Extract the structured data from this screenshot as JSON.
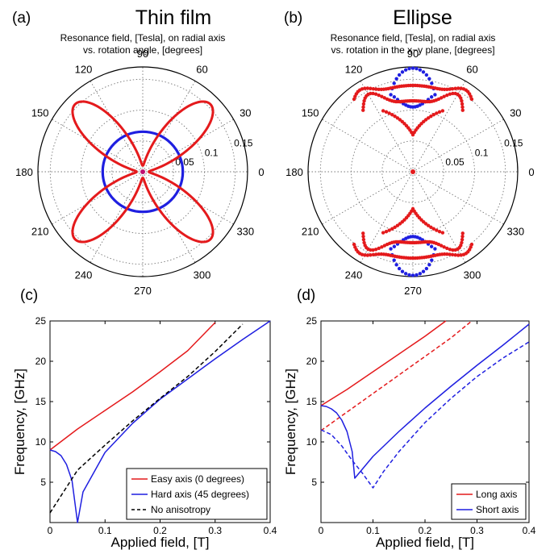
{
  "chart_data": [
    {
      "id": "a",
      "type": "polar",
      "panel_label": "(a)",
      "title": "Thin film",
      "subtitle_lines": [
        "Resonance field, [Tesla], on radial axis",
        "vs. rotation angle, [degrees]"
      ],
      "angle_labels": [
        "0",
        "30",
        "60",
        "90",
        "120",
        "150",
        "180",
        "210",
        "240",
        "270",
        "300",
        "330"
      ],
      "radial_labels": [
        "0.05",
        "0.1",
        "0.15"
      ],
      "rmax": 0.17,
      "colors": {
        "red": "#e41a1c",
        "blue": "#1f1fe0"
      },
      "series": [
        {
          "color": "red",
          "shape": "rose",
          "value_at_0_deg": 0.01,
          "value_at_45_deg": 0.155
        },
        {
          "color": "blue",
          "shape": "circle",
          "value": 0.065
        }
      ]
    },
    {
      "id": "b",
      "type": "polar",
      "panel_label": "(b)",
      "title": "Ellipse",
      "subtitle_lines": [
        "Resonance field, [Tesla], on radial axis",
        "vs. rotation in the x−y plane, [degrees]"
      ],
      "angle_labels": [
        "0",
        "30",
        "60",
        "90",
        "120",
        "150",
        "180",
        "210",
        "240",
        "270",
        "300",
        "330"
      ],
      "radial_labels": [
        "0.05",
        "0.1",
        "0.15"
      ],
      "rmax": 0.17,
      "colors": {
        "red": "#e41a1c",
        "blue": "#1f1fe0"
      },
      "series": [
        {
          "color": "red",
          "shape": "dotted-lobes",
          "value_at_90_deg": 0.115,
          "peak_value": 0.145,
          "peak_angle_offset_deg": 30
        },
        {
          "color": "red",
          "shape": "dotted-lobes",
          "value_at_90_deg": 0.14,
          "max_value": 0.158
        },
        {
          "color": "blue",
          "shape": "dotted-lobes",
          "value_at_90_deg": 0.168,
          "inner_value_at_90_deg": 0.105
        }
      ]
    },
    {
      "id": "c",
      "type": "line",
      "panel_label": "(c)",
      "xlabel": "Applied field, [T]",
      "ylabel": "Frequency, [GHz]",
      "xlim": [
        0,
        0.4
      ],
      "ylim": [
        0,
        25
      ],
      "xticks": [
        "0",
        "0.1",
        "0.2",
        "0.3",
        "0.4"
      ],
      "yticks": [
        "5",
        "10",
        "15",
        "20",
        "25"
      ],
      "series": [
        {
          "name": "Easy axis (0 degrees)",
          "color": "#e41a1c",
          "dash": "solid",
          "x": [
            0,
            0.05,
            0.1,
            0.15,
            0.2,
            0.25,
            0.3
          ],
          "y": [
            9,
            11.6,
            13.9,
            16.2,
            18.7,
            21.3,
            24.8
          ]
        },
        {
          "name": "Hard axis (45 degrees)",
          "color": "#1f1fe0",
          "dash": "solid",
          "x": [
            0,
            0.01,
            0.02,
            0.03,
            0.04,
            0.05,
            0.06,
            0.1,
            0.15,
            0.2,
            0.25,
            0.3,
            0.35,
            0.4
          ],
          "y": [
            9,
            8.8,
            8.3,
            7.2,
            5.2,
            0,
            3.8,
            8.7,
            12.3,
            15.3,
            17.8,
            20.3,
            22.7,
            25
          ]
        },
        {
          "name": "No anisotropy",
          "color": "#000000",
          "dash": "dashed",
          "x": [
            0,
            0.05,
            0.1,
            0.15,
            0.2,
            0.25,
            0.3,
            0.35
          ],
          "y": [
            1.2,
            6.5,
            9.6,
            12.6,
            15.4,
            18.1,
            21.2,
            24.6
          ]
        }
      ],
      "legend_placement": "bottom-right"
    },
    {
      "id": "d",
      "type": "line",
      "panel_label": "(d)",
      "xlabel": "Applied field, [T]",
      "ylabel": "Frequency, [GHz]",
      "xlim": [
        0,
        0.4
      ],
      "ylim": [
        0,
        25
      ],
      "xticks": [
        "0",
        "0.1",
        "0.2",
        "0.3",
        "0.4"
      ],
      "yticks": [
        "5",
        "10",
        "15",
        "20",
        "25"
      ],
      "series": [
        {
          "name": "Long axis",
          "color": "#e41a1c",
          "dash": "solid",
          "x": [
            0,
            0.05,
            0.1,
            0.15,
            0.2,
            0.24
          ],
          "y": [
            14.5,
            16.5,
            18.7,
            20.9,
            23.1,
            25
          ]
        },
        {
          "name": "",
          "color": "#e41a1c",
          "dash": "dashed",
          "x": [
            0,
            0.05,
            0.1,
            0.15,
            0.2,
            0.25,
            0.29
          ],
          "y": [
            11.4,
            13.7,
            16,
            18.3,
            20.6,
            22.9,
            25
          ]
        },
        {
          "name": "Short axis",
          "color": "#1f1fe0",
          "dash": "solid",
          "x": [
            0,
            0.01,
            0.02,
            0.03,
            0.04,
            0.05,
            0.06,
            0.065,
            0.1,
            0.15,
            0.2,
            0.25,
            0.3,
            0.35,
            0.4
          ],
          "y": [
            14.5,
            14.4,
            14.1,
            13.6,
            12.7,
            11.3,
            8.8,
            5.5,
            8.2,
            11.3,
            14.2,
            16.9,
            19.5,
            22,
            24.6
          ]
        },
        {
          "name": "",
          "color": "#1f1fe0",
          "dash": "dashed",
          "x": [
            0,
            0.02,
            0.04,
            0.06,
            0.08,
            0.1,
            0.12,
            0.15,
            0.2,
            0.25,
            0.3,
            0.35,
            0.4
          ],
          "y": [
            11.5,
            10.9,
            9.5,
            7.7,
            6.1,
            4.3,
            6.3,
            8.8,
            12.4,
            15.4,
            18.1,
            20.4,
            22.4
          ]
        }
      ],
      "legend_placement": "bottom-right"
    }
  ]
}
